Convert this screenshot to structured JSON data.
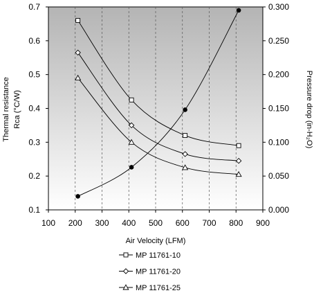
{
  "chart_data": {
    "type": "line",
    "xlabel": "Air Velocity (LFM)",
    "ylabel_left": [
      "Thermal resistance",
      "Rca (°C/W)"
    ],
    "ylabel_right": "Pressure drop (in-H₂O)",
    "xlim": [
      100,
      900
    ],
    "ylim_left": [
      0.1,
      0.7
    ],
    "ylim_right": [
      0.0,
      0.3
    ],
    "x_ticks": [
      "100",
      "200",
      "300",
      "400",
      "500",
      "600",
      "700",
      "800",
      "900"
    ],
    "y_left_ticks": [
      "0.1",
      "0.2",
      "0.3",
      "0.4",
      "0.5",
      "0.6",
      "0.7"
    ],
    "y_right_ticks": [
      "0.000",
      "0.050",
      "0.100",
      "0.150",
      "0.200",
      "0.250",
      "0.300"
    ],
    "grid": "vertical dashed",
    "plot_background": "gray gradient",
    "legend_position": "bottom",
    "series": [
      {
        "name": "MP 11761-10",
        "axis": "left",
        "marker": "square",
        "x": [
          210,
          410,
          610,
          810
        ],
        "values": [
          0.66,
          0.425,
          0.32,
          0.29
        ]
      },
      {
        "name": "MP 11761-20",
        "axis": "left",
        "marker": "diamond",
        "x": [
          210,
          410,
          610,
          810
        ],
        "values": [
          0.565,
          0.35,
          0.265,
          0.245
        ]
      },
      {
        "name": "MP 11761-25",
        "axis": "left",
        "marker": "triangle",
        "x": [
          210,
          410,
          610,
          810
        ],
        "values": [
          0.49,
          0.3,
          0.225,
          0.205
        ]
      },
      {
        "axis": "right",
        "marker": "filled-circle",
        "x": [
          210,
          410,
          610,
          810
        ],
        "values": [
          0.02,
          0.063,
          0.148,
          0.295
        ]
      }
    ]
  },
  "colors": {
    "line": "#000000",
    "plot_bg_top": "#b4b4b4",
    "plot_bg_bottom": "#ffffff",
    "grid": "#555555"
  }
}
